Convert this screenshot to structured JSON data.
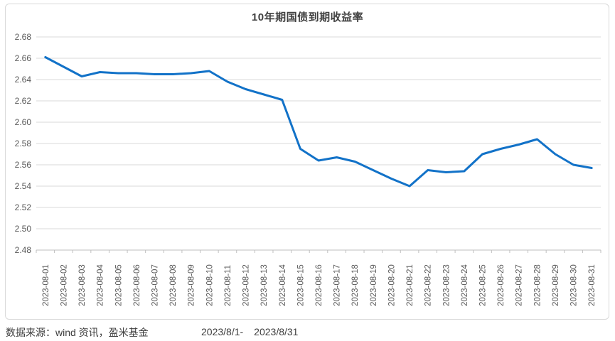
{
  "chart_data": {
    "type": "line",
    "title": "10年期国债到期收益率",
    "categories": [
      "2023-08-01",
      "2023-08-02",
      "2023-08-03",
      "2023-08-04",
      "2023-08-05",
      "2023-08-06",
      "2023-08-07",
      "2023-08-08",
      "2023-08-09",
      "2023-08-10",
      "2023-08-11",
      "2023-08-12",
      "2023-08-13",
      "2023-08-14",
      "2023-08-15",
      "2023-08-16",
      "2023-08-17",
      "2023-08-18",
      "2023-08-19",
      "2023-08-20",
      "2023-08-21",
      "2023-08-22",
      "2023-08-23",
      "2023-08-24",
      "2023-08-25",
      "2023-08-26",
      "2023-08-27",
      "2023-08-28",
      "2023-08-29",
      "2023-08-30",
      "2023-08-31"
    ],
    "values": [
      2.661,
      2.652,
      2.643,
      2.647,
      2.646,
      2.646,
      2.645,
      2.645,
      2.646,
      2.648,
      2.638,
      2.631,
      2.626,
      2.621,
      2.575,
      2.564,
      2.567,
      2.563,
      2.555,
      2.547,
      2.54,
      2.555,
      2.553,
      2.554,
      2.57,
      2.575,
      2.579,
      2.584,
      2.57,
      2.56,
      2.557
    ],
    "xlabel": "",
    "ylabel": "",
    "ylim": [
      2.48,
      2.68
    ],
    "ytick_step": 0.02,
    "ytick_labels": [
      "2.48",
      "2.50",
      "2.52",
      "2.54",
      "2.56",
      "2.58",
      "2.60",
      "2.62",
      "2.64",
      "2.66",
      "2.68"
    ],
    "grid": "horizontal",
    "legend": "none",
    "line_color": "#1272C8"
  },
  "colors": {
    "line": "#1272C8",
    "title_text": "#404040",
    "axis_label": "#595959",
    "gridline": "#D9D9D9",
    "axis_line": "#BFBFBF",
    "card_border": "#D9D9D9"
  },
  "footer": {
    "source": "数据来源：wind 资讯，盈米基金",
    "range_start": "2023/8/1-",
    "range_end": "2023/8/31"
  }
}
